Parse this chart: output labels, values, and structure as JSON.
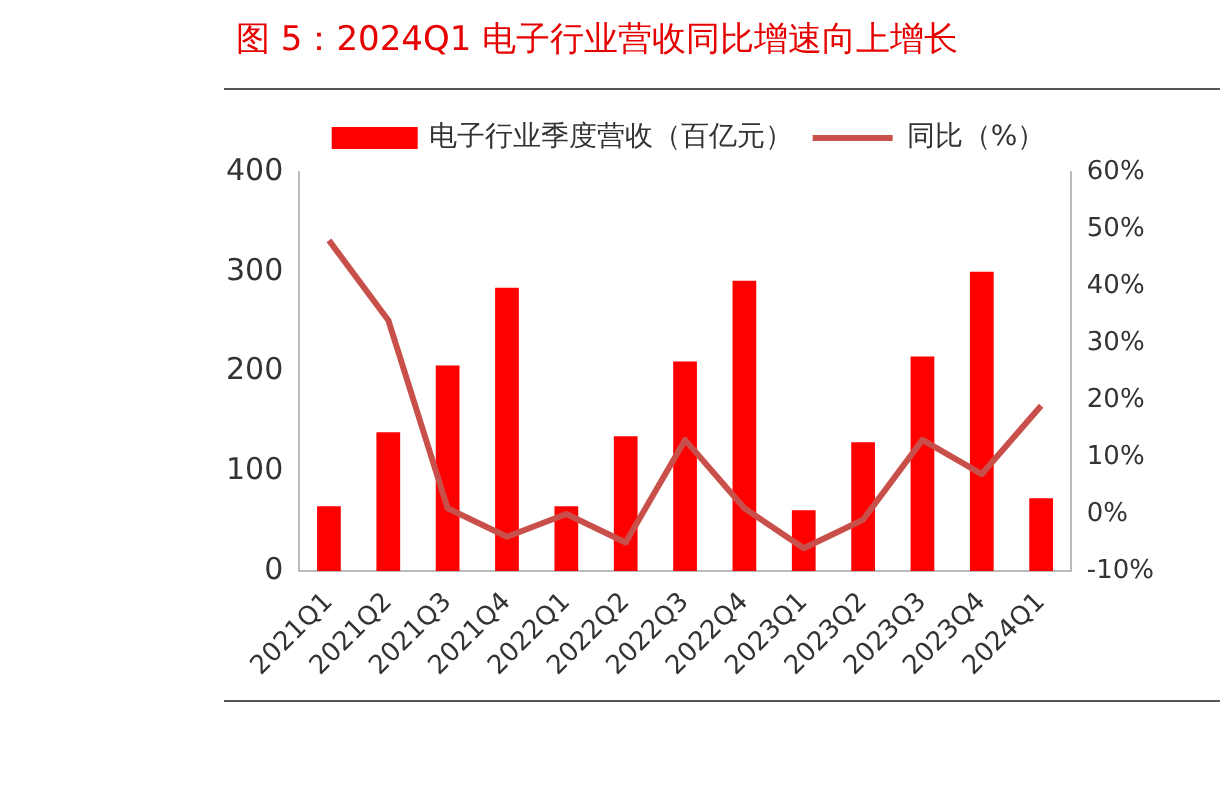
{
  "chart_data": {
    "type": "bar",
    "title": "图 5：2024Q1 电子行业营收同比增速向上增长",
    "categories": [
      "2021Q1",
      "2021Q2",
      "2021Q3",
      "2021Q4",
      "2022Q1",
      "2022Q2",
      "2022Q3",
      "2022Q4",
      "2023Q1",
      "2023Q2",
      "2023Q3",
      "2023Q4",
      "2024Q1"
    ],
    "series": [
      {
        "name": "电子行业季度营收（百亿元）",
        "color": "#ff0000",
        "values": [
          65,
          139,
          206,
          284,
          65,
          135,
          210,
          291,
          61,
          129,
          215,
          300,
          73
        ]
      },
      {
        "name": "同比（%）",
        "type": "line",
        "axis": "y2",
        "color": "#c9504a",
        "marker": "none",
        "values": [
          48,
          34,
          1,
          -4,
          0,
          -5,
          13,
          1,
          -6,
          -1,
          13,
          7,
          19
        ]
      }
    ],
    "ylim": [
      0,
      400
    ],
    "yticks": [
      0,
      100,
      200,
      300,
      400
    ],
    "y2lim": [
      -10,
      60
    ],
    "y2ticks": [
      {
        "value": -10,
        "label": "-10%"
      },
      {
        "value": 0,
        "label": "0%"
      },
      {
        "value": 10,
        "label": "10%"
      },
      {
        "value": 20,
        "label": "20%"
      },
      {
        "value": 30,
        "label": "30%"
      },
      {
        "value": 40,
        "label": "40%"
      },
      {
        "value": 50,
        "label": "50%"
      },
      {
        "value": 60,
        "label": "60%"
      }
    ],
    "grid": false,
    "legend": "top"
  }
}
